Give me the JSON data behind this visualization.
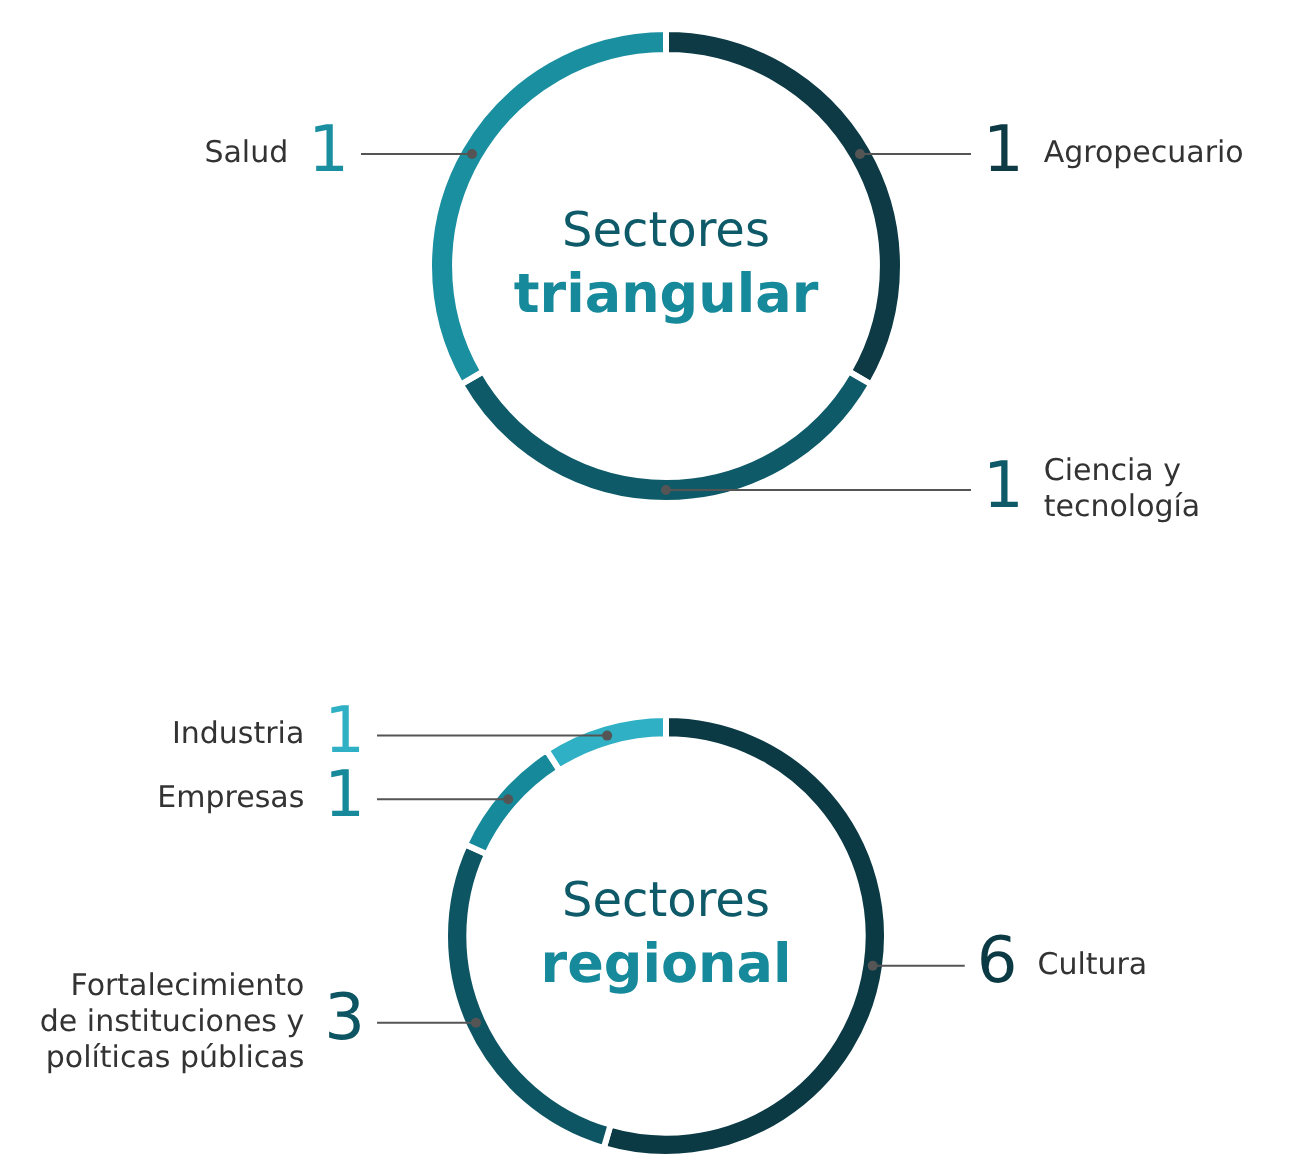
{
  "chart_data": [
    {
      "type": "donut",
      "title": "Sectores",
      "subtitle": "triangular",
      "categories": [
        "Agropecuario",
        "Ciencia y tecnología",
        "Salud"
      ],
      "values": [
        1,
        1,
        1
      ],
      "colors": [
        "#0d3a45",
        "#0e5a68",
        "#1a8fa0"
      ],
      "data_labels": true,
      "legend": false
    },
    {
      "type": "donut",
      "title": "Sectores",
      "subtitle": "regional",
      "categories": [
        "Cultura",
        "Fortalecimiento de instituciones y políticas públicas",
        "Empresas",
        "Industria"
      ],
      "values": [
        6,
        3,
        1,
        1
      ],
      "colors": [
        "#0b3a44",
        "#0e5563",
        "#16899b",
        "#2fb0c4"
      ],
      "data_labels": true,
      "legend": false
    }
  ]
}
